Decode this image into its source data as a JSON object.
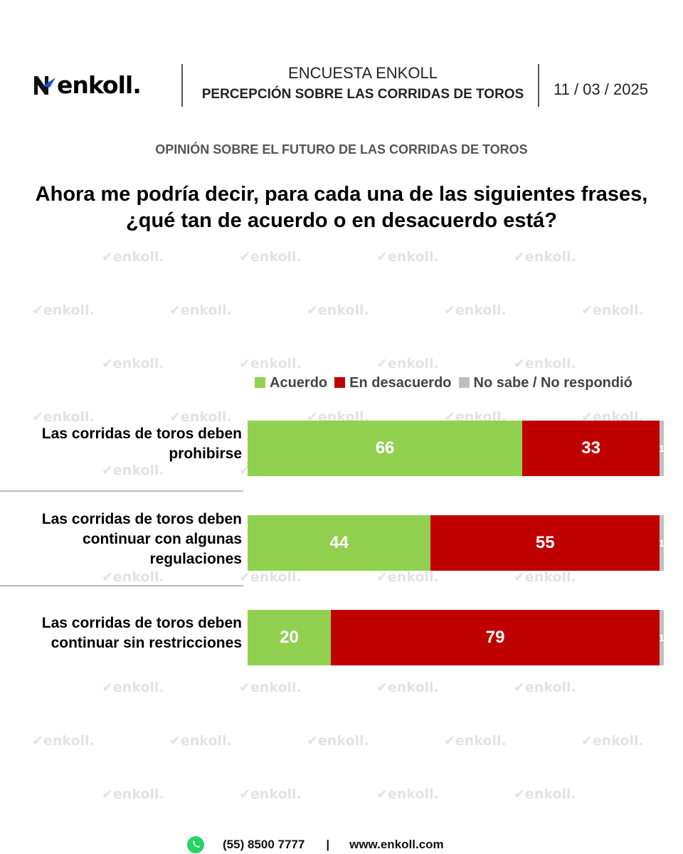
{
  "header": {
    "logo_text": "enkoll.",
    "survey": "ENCUESTA ENKOLL",
    "title": "PERCEPCIÓN SOBRE LAS CORRIDAS DE TOROS",
    "date": "11 / 03 / 2025"
  },
  "subtitle": "OPINIÓN SOBRE EL FUTURO DE LAS CORRIDAS DE TOROS",
  "question": "Ahora me podría decir, para cada una de las siguientes frases, ¿qué tan de acuerdo o en desacuerdo está?",
  "watermark": "enkoll.",
  "chart_data": {
    "type": "bar",
    "orientation": "horizontal-stacked-100",
    "categories": [
      "Las corridas de toros deben prohibirse",
      "Las corridas de toros deben continuar con algunas regulaciones",
      "Las corridas de toros deben continuar sin restricciones"
    ],
    "series": [
      {
        "name": "Acuerdo",
        "color": "#92d050",
        "values": [
          66,
          44,
          20
        ]
      },
      {
        "name": "En desacuerdo",
        "color": "#c00000",
        "values": [
          33,
          55,
          79
        ]
      },
      {
        "name": "No sabe / No respondió",
        "color": "#bfbfbf",
        "values": [
          1,
          1,
          1
        ]
      }
    ],
    "xlim": [
      0,
      100
    ],
    "legend": "top"
  },
  "footer": {
    "phone": "(55) 8500 7777",
    "separator": "|",
    "website": "www.enkoll.com"
  }
}
